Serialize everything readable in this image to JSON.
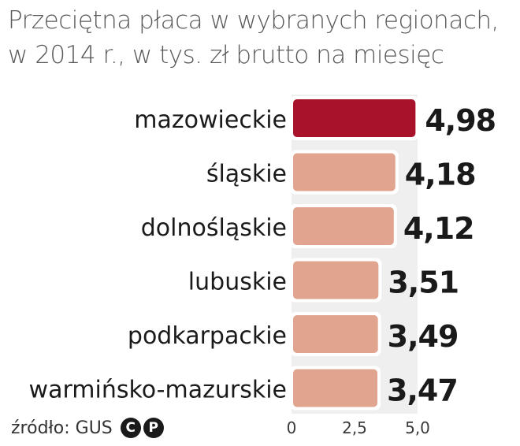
{
  "chart_data": {
    "type": "bar",
    "orientation": "horizontal",
    "title": "Przeciętna płaca w wybranych regionach, w 2014 r., w tys. zł brutto na miesięc",
    "title_lines": [
      "Przeciętna płaca w wybranych regionach,",
      "w 2014 r., w tys. zł brutto na miesięc"
    ],
    "categories": [
      "mazowieckie",
      "śląskie",
      "dolnośląskie",
      "lubuskie",
      "podkarpackie",
      "warmińsko-mazurskie"
    ],
    "values": [
      4.98,
      4.18,
      4.12,
      3.51,
      3.49,
      3.47
    ],
    "value_labels": [
      "4,98",
      "4,18",
      "4,12",
      "3,51",
      "3,49",
      "3,47"
    ],
    "xlim": [
      0,
      5.0
    ],
    "xticks": [
      "0",
      "2,5",
      "5,0"
    ],
    "xtick_values": [
      0,
      2.5,
      5.0
    ],
    "highlight_index": 0,
    "colors": {
      "highlight": "#a8122a",
      "bar": "#e0a48f",
      "grid_band": "#efefef",
      "bar_outline": "#ffffff"
    },
    "grid": false
  },
  "source": {
    "text": "źródło: GUS",
    "badges": [
      "C",
      "P"
    ]
  }
}
